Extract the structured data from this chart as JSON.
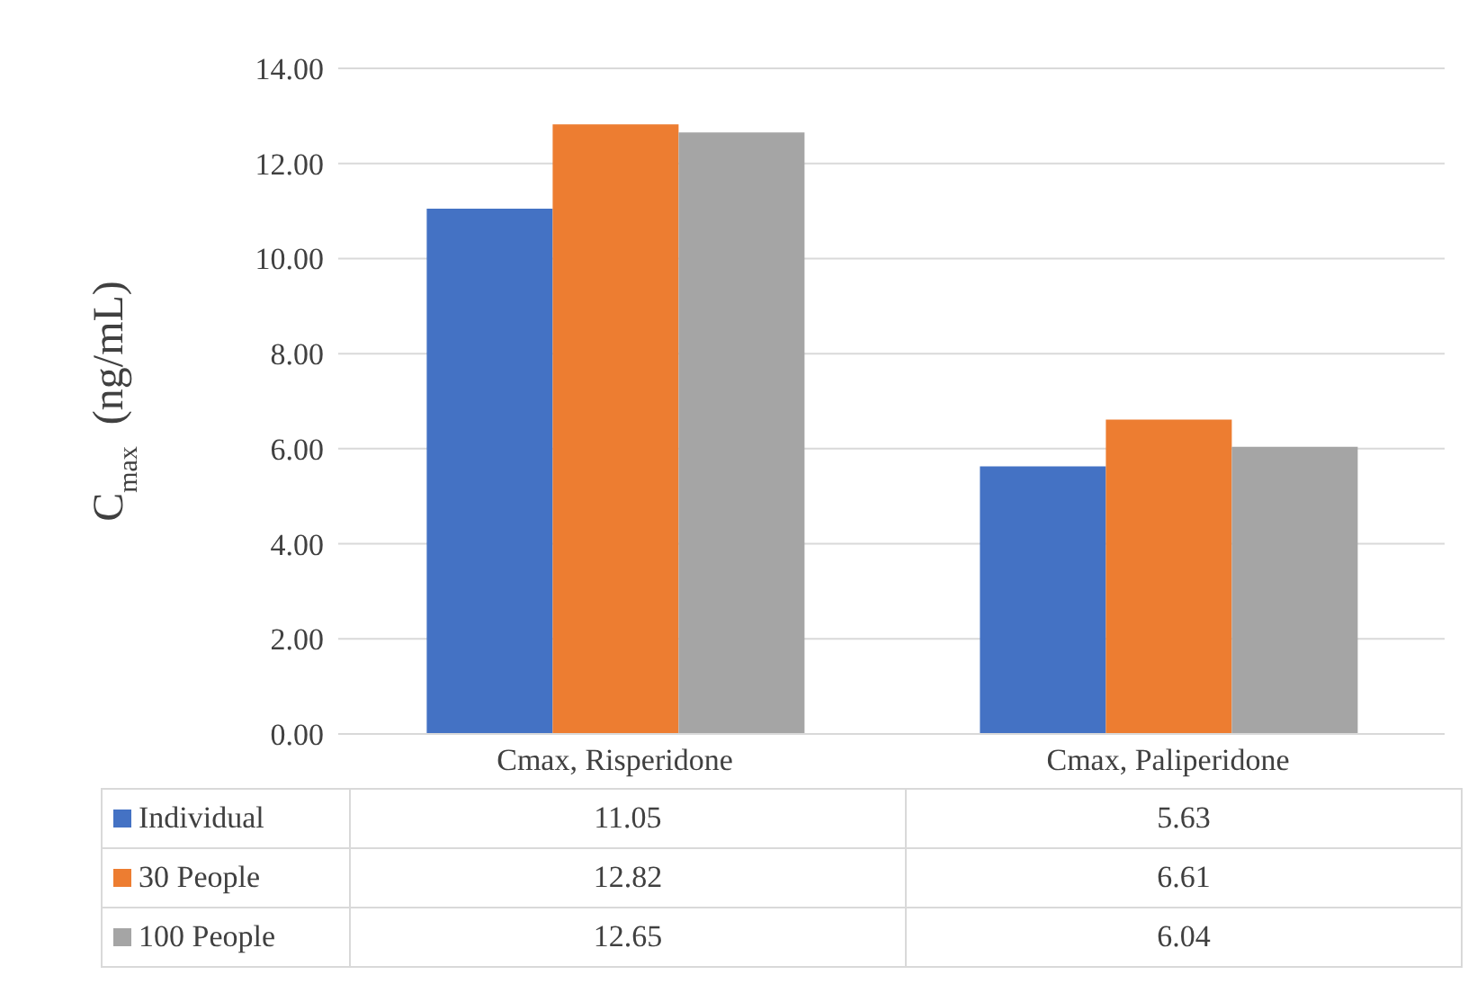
{
  "chart_data": {
    "type": "bar",
    "ylabel": "C$_{max}$  (ng/mL)",
    "categories": [
      "Cmax, Risperidone",
      "Cmax, Paliperidone"
    ],
    "series": [
      {
        "name": "Individual",
        "color": "#4472c4",
        "values": [
          11.05,
          5.63
        ]
      },
      {
        "name": "30 People",
        "color": "#ed7d31",
        "values": [
          12.82,
          6.61
        ]
      },
      {
        "name": "100 People",
        "color": "#a5a5a5",
        "values": [
          12.65,
          6.04
        ]
      }
    ],
    "ylim": [
      0,
      14
    ],
    "yticks": [
      {
        "value": 0,
        "label": "0.00"
      },
      {
        "value": 2,
        "label": "2.00"
      },
      {
        "value": 4,
        "label": "4.00"
      },
      {
        "value": 6,
        "label": "6.00"
      },
      {
        "value": 8,
        "label": "8.00"
      },
      {
        "value": 10,
        "label": "10.00"
      },
      {
        "value": 12,
        "label": "12.00"
      },
      {
        "value": 14,
        "label": "14.00"
      }
    ],
    "grid": "y",
    "legend": "bottom",
    "data_labels": true
  }
}
